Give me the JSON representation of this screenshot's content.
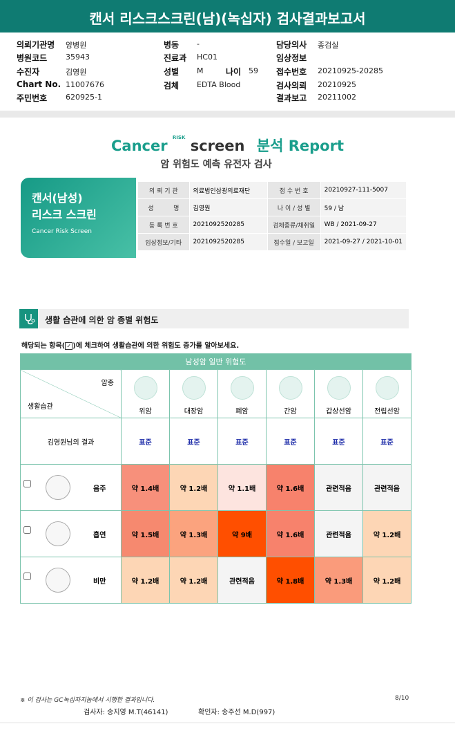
{
  "header": {
    "title": "캔서 리스크스크린(남)(녹십자) 검사결과보고서"
  },
  "info": {
    "columns": [
      [
        {
          "label": "의뢰기관명",
          "value": "양병원"
        },
        {
          "label": "병원코드",
          "value": "35943"
        },
        {
          "label": "수진자",
          "value": "김영원"
        },
        {
          "label": "Chart No.",
          "value": "11007676"
        },
        {
          "label": "주민번호",
          "value": "620925-1"
        }
      ],
      [
        {
          "label": "병동",
          "value": "-"
        },
        {
          "label": "진료과",
          "value": "HC01"
        },
        {
          "label": "성별",
          "value": "M"
        },
        {
          "label": "검체",
          "value": "EDTA Blood"
        }
      ],
      [
        {
          "label": "담당의사",
          "value": "종검실"
        },
        {
          "label": "임상정보"
        },
        {
          "label": "접수번호",
          "value": "20210925-20285"
        },
        {
          "label": "검사의뢰",
          "value": "20210925"
        },
        {
          "label": "결과보고",
          "value": "20211002"
        }
      ]
    ],
    "age": {
      "label": "나이",
      "value": "59"
    }
  },
  "report": {
    "logo": {
      "cancer": "Cancer",
      "risk": "RISK",
      "screen": "screen",
      "report": "분석 Report"
    },
    "subtitle": "암 위험도 예측 유전자 검사",
    "card": {
      "line1": "캔서(남성)",
      "line2": "리스크 스크린",
      "english": "Cancer Risk Screen"
    },
    "table": [
      [
        "의 뢰 기 관",
        "의료법인삼광의료재단",
        "접 수 번 호",
        "20210927-111-5007"
      ],
      [
        "성          명",
        "김영원",
        "나 이 / 성 별",
        "59 / 남"
      ],
      [
        "등 록 번 호",
        "2021092520285",
        "검체종류/채취일",
        "WB / 2021-09-27"
      ],
      [
        "임상정보/기타",
        "2021092520285",
        "접수일 / 보고일",
        "2021-09-27 / 2021-10-01"
      ]
    ]
  },
  "section": {
    "title": "생활 습관에 의한 암 종별 위험도",
    "instruction_before": "해당되는 항목(",
    "instruction_after": ")에 체크하여 생활습관에 의한 위험도 증가를 알아보세요."
  },
  "risk_table": {
    "title": "남성암 일반 위험도",
    "corner_top": "암종",
    "corner_bottom": "생활습관",
    "columns": [
      "위암",
      "대장암",
      "폐암",
      "간암",
      "갑상선암",
      "전립선암"
    ],
    "result_label": "김영원님의 결과",
    "results": [
      "표준",
      "표준",
      "표준",
      "표준",
      "표준",
      "표준"
    ],
    "rows": [
      {
        "name": "음주",
        "cells": [
          "약 1.4배",
          "약 1.2배",
          "약 1.1배",
          "약 1.6배",
          "관련적음",
          "관련적음"
        ],
        "colors": [
          "#f7907b",
          "#fdd6b5",
          "#fde4df",
          "#f7826c",
          "#f4f4f4",
          "#f4f4f4"
        ]
      },
      {
        "name": "흡연",
        "cells": [
          "약 1.5배",
          "약 1.3배",
          "약 9배",
          "약 1.6배",
          "관련적음",
          "약 1.2배"
        ],
        "colors": [
          "#f6896f",
          "#fba37e",
          "#ff4f00",
          "#f7826c",
          "#f4f4f4",
          "#fdd6b5"
        ]
      },
      {
        "name": "비만",
        "cells": [
          "약 1.2배",
          "약 1.2배",
          "관련적음",
          "약 1.8배",
          "약 1.3배",
          "약 1.2배"
        ],
        "colors": [
          "#fdd6b5",
          "#fdd6b5",
          "#f4f4f4",
          "#ff4f00",
          "#fa9b7b",
          "#fdd6b5"
        ]
      }
    ]
  },
  "footer": {
    "note": "※ 이 검사는 GC녹십자지놈에서 시행한 결과입니다.",
    "page": "8/10",
    "tester": "검사자: 송지영 M.T(46141)",
    "confirmer": "확인자: 송주선 M.D(997)"
  }
}
